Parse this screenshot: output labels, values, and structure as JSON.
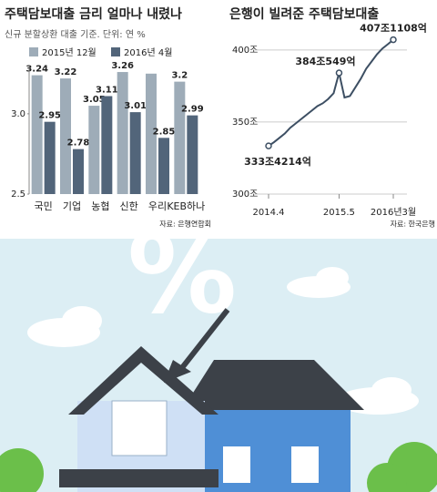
{
  "chart_data": [
    {
      "type": "bar",
      "title": "주택담보대출 금리 얼마나 내렸나",
      "subtitle": "신규 분할상환 대출 기준. 단위: 연 %",
      "categories": [
        "국민",
        "기업",
        "농협",
        "신한",
        "우리",
        "KEB하나"
      ],
      "series": [
        {
          "name": "2015년 12월",
          "color": "#9eacb8",
          "values": [
            3.24,
            3.22,
            3.05,
            3.26,
            3.25,
            3.2
          ],
          "value_labels": [
            "3.24",
            "3.22",
            "3.05",
            "3.26",
            null,
            "3.2"
          ]
        },
        {
          "name": "2016년 4월",
          "color": "#52657a",
          "values": [
            2.95,
            2.78,
            3.11,
            3.01,
            2.85,
            2.99
          ],
          "value_labels": [
            "2.95",
            "2.78",
            "3.11",
            "3.01",
            "2.85",
            "2.99"
          ]
        }
      ],
      "ylim": [
        2.5,
        3.3
      ],
      "yticks": [
        2.5,
        {
          "value": 3,
          "label": "3.0"
        }
      ],
      "source": "자료: 은행연합회"
    },
    {
      "type": "line",
      "title": "은행이 빌려준 주택담보대출",
      "categories": [
        "2014.4",
        null,
        null,
        null,
        null,
        null,
        null,
        null,
        null,
        null,
        null,
        null,
        null,
        "2015.5",
        null,
        null,
        null,
        null,
        null,
        null,
        null,
        null,
        null,
        "2016년3월"
      ],
      "series": [
        {
          "name": "주택담보대출",
          "color": "#3d4f63",
          "values": [
            333.4214,
            336,
            339,
            342,
            346,
            349,
            352,
            355,
            358,
            361,
            363,
            366,
            370,
            384.0549,
            367,
            368,
            374,
            380,
            387,
            392,
            397,
            401,
            404,
            407.1108
          ],
          "value_labels": [
            "333조4214억",
            null,
            null,
            null,
            null,
            null,
            null,
            null,
            null,
            null,
            null,
            null,
            null,
            "384조549억",
            null,
            null,
            null,
            null,
            null,
            null,
            null,
            null,
            null,
            "407조1108억"
          ]
        }
      ],
      "ylim": [
        300,
        410
      ],
      "yticks": [
        {
          "value": 300,
          "label": "300조"
        },
        {
          "value": 350,
          "label": "350조"
        },
        {
          "value": 400,
          "label": "400조"
        }
      ],
      "grid": true,
      "source": "자료: 한국은행"
    }
  ],
  "illustration": {
    "symbol": "%"
  }
}
